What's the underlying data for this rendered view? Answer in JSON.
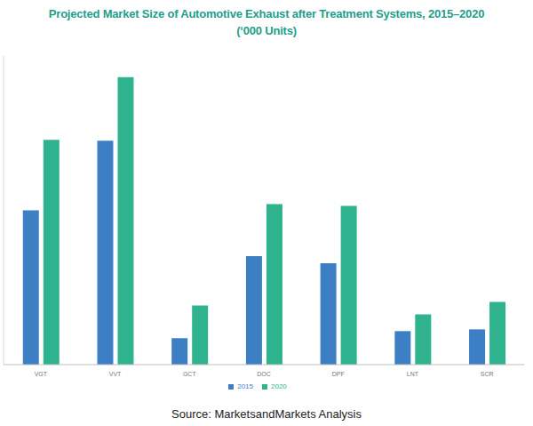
{
  "chart_data": {
    "type": "bar",
    "title": "Projected Market Size of Automotive Exhaust after Treatment Systems, 2015–2020",
    "subtitle": "(‘000 Units)",
    "source": "Source: MarketsandMarkets Analysis",
    "categories": [
      "VGT",
      "VVT",
      "GCT",
      "DOC",
      "DPF",
      "LNT",
      "SCR"
    ],
    "series": [
      {
        "name": "2015",
        "color": "#3c7fc4",
        "values": [
          175,
          254,
          30,
          123,
          115,
          38,
          40
        ]
      },
      {
        "name": "2020",
        "color": "#2fb38f",
        "values": [
          255,
          326,
          67,
          182,
          180,
          57,
          71
        ]
      }
    ],
    "ylim": [
      0,
      350
    ],
    "grid": false,
    "legend": "bottom",
    "tick_labels": "x"
  }
}
